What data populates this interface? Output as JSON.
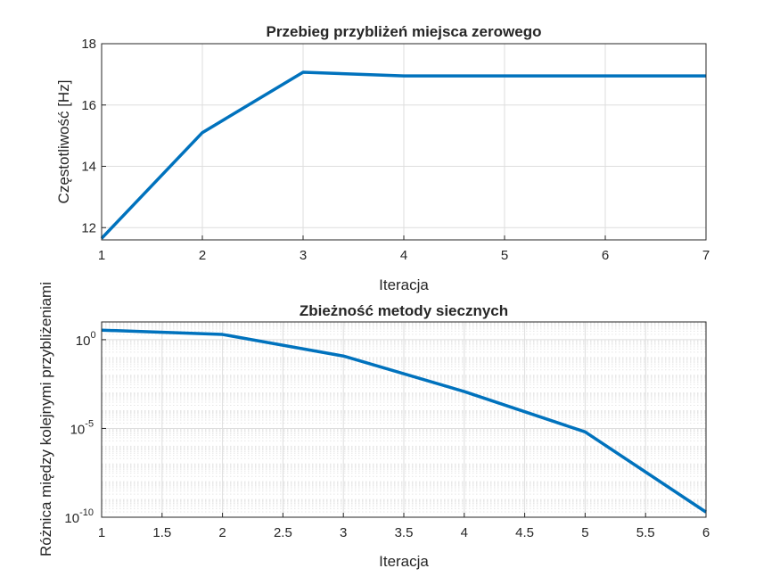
{
  "chart_data": [
    {
      "type": "line",
      "title": "Przebieg przybliżeń miejsca zerowego",
      "xlabel": "Iteracja",
      "ylabel": "Częstotliwość [Hz]",
      "x": [
        1,
        2,
        3,
        4,
        5,
        6,
        7
      ],
      "series": [
        {
          "values": [
            11.65,
            15.1,
            17.07,
            16.95,
            16.95,
            16.95,
            16.95
          ]
        }
      ],
      "xlim": [
        1,
        7
      ],
      "ylim": [
        11.6,
        18
      ],
      "xticks": [
        1,
        2,
        3,
        4,
        5,
        6,
        7
      ],
      "xtick_labels": [
        "1",
        "2",
        "3",
        "4",
        "5",
        "6",
        "7"
      ],
      "yticks": [
        12,
        14,
        16,
        18
      ],
      "ytick_labels": [
        "12",
        "14",
        "16",
        "18"
      ],
      "yscale": "linear",
      "grid": true,
      "color": "#0072bd"
    },
    {
      "type": "line",
      "title": "Zbieżność metody siecznych",
      "xlabel": "Iteracja",
      "ylabel": "Różnica między kolejnymi przybliżeniami",
      "x": [
        1,
        2,
        3,
        4,
        5,
        6
      ],
      "series": [
        {
          "values": [
            3.45,
            1.97,
            0.12,
            0.0012,
            6.4e-06,
            1.94e-10
          ]
        }
      ],
      "xlim": [
        1,
        6
      ],
      "ylim_exponent": [
        -10,
        1
      ],
      "xticks": [
        1,
        1.5,
        2,
        2.5,
        3,
        3.5,
        4,
        4.5,
        5,
        5.5,
        6
      ],
      "xtick_labels": [
        "1",
        "1.5",
        "2",
        "2.5",
        "3",
        "3.5",
        "4",
        "4.5",
        "5",
        "5.5",
        "6"
      ],
      "ytick_exponents": [
        -10,
        -5,
        0
      ],
      "ytick_base": "10",
      "yscale": "log",
      "grid": true,
      "minor_grid": true,
      "color": "#0072bd"
    }
  ]
}
